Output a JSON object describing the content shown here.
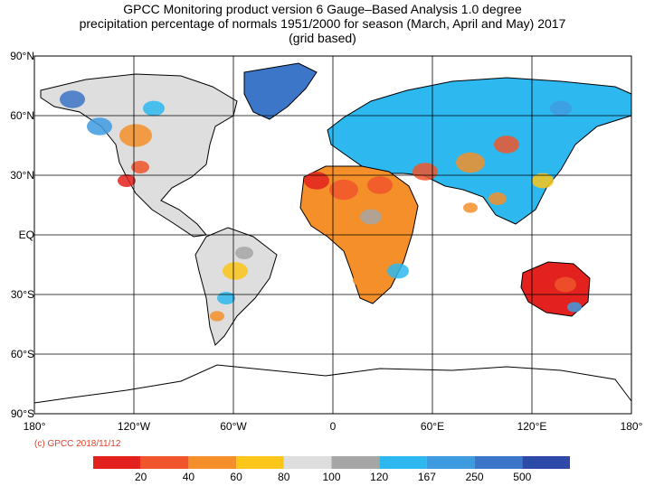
{
  "title": {
    "line1": "GPCC Monitoring product version 6 Gauge–Based Analysis 1.0 degree",
    "line2": "precipitation percentage of normals 1951/2000 for season (March, April and May) 2017",
    "line3": "(grid based)"
  },
  "y_axis": {
    "labels": [
      "90°N",
      "60°N",
      "30°N",
      "EQ",
      "30°S",
      "60°S",
      "90°S"
    ],
    "values": [
      90,
      60,
      30,
      0,
      -30,
      -60,
      -90
    ]
  },
  "x_axis": {
    "labels": [
      "180°",
      "120°W",
      "60°W",
      "0",
      "60°E",
      "120°E",
      "180°"
    ],
    "values": [
      -180,
      -120,
      -60,
      0,
      60,
      120,
      180
    ]
  },
  "copyright": "(c) GPCC 2018/11/12",
  "colorbar": {
    "colors": [
      "#e3221f",
      "#f0552b",
      "#f58f2a",
      "#fbc51a",
      "#dedede",
      "#a6a6a6",
      "#2db8ef",
      "#3f9be0",
      "#3c76c8",
      "#2e4aa8"
    ],
    "labels": [
      "20",
      "40",
      "60",
      "80",
      "100",
      "120",
      "167",
      "250",
      "500"
    ]
  }
}
